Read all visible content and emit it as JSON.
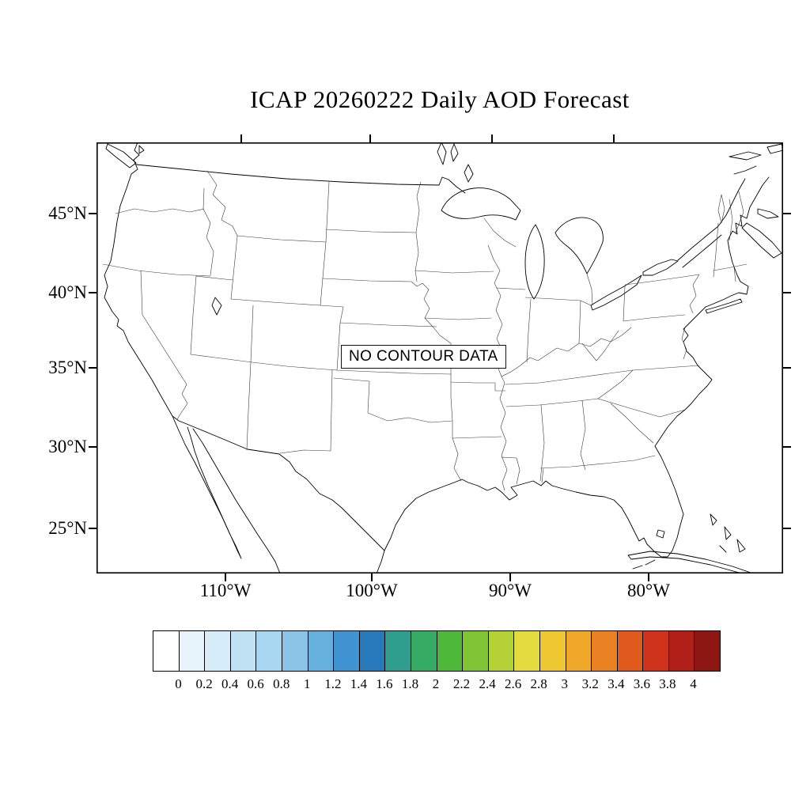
{
  "title": "ICAP 20260222 Daily AOD Forecast",
  "map": {
    "no_data_label": "NO CONTOUR DATA",
    "lat_labels": [
      "45°N",
      "40°N",
      "35°N",
      "30°N",
      "25°N"
    ],
    "lon_labels": [
      "110°W",
      "100°W",
      "90°W",
      "80°W"
    ]
  },
  "colorbar": {
    "labels": [
      "0",
      "0.2",
      "0.4",
      "0.6",
      "0.8",
      "1",
      "1.2",
      "1.4",
      "1.6",
      "1.8",
      "2",
      "2.2",
      "2.4",
      "2.6",
      "2.8",
      "3",
      "3.2",
      "3.4",
      "3.6",
      "3.8",
      "4"
    ],
    "colors": [
      "#ffffff",
      "#e8f4fb",
      "#d6ecf8",
      "#c1e1f5",
      "#a8d5f0",
      "#8ac5e8",
      "#66b0de",
      "#3f94d1",
      "#2878bc",
      "#2f9e8e",
      "#35ab63",
      "#4eb83b",
      "#7ec435",
      "#b5d138",
      "#e3da3e",
      "#eec832",
      "#f0a82b",
      "#ea8123",
      "#e05a1e",
      "#cf331b",
      "#b02019",
      "#8c1713"
    ]
  },
  "chart_data": {
    "type": "heatmap",
    "title": "ICAP 20260222 Daily AOD Forecast",
    "data_status": "NO CONTOUR DATA",
    "x_tick_labels": [
      "110°W",
      "100°W",
      "90°W",
      "80°W"
    ],
    "y_tick_labels": [
      "45°N",
      "40°N",
      "35°N",
      "30°N",
      "25°N"
    ],
    "region": "Continental United States",
    "colorbar_levels": [
      0,
      0.2,
      0.4,
      0.6,
      0.8,
      1,
      1.2,
      1.4,
      1.6,
      1.8,
      2,
      2.2,
      2.4,
      2.6,
      2.8,
      3,
      3.2,
      3.4,
      3.6,
      3.8,
      4
    ],
    "colorbar_range": [
      0,
      4
    ],
    "values": []
  }
}
